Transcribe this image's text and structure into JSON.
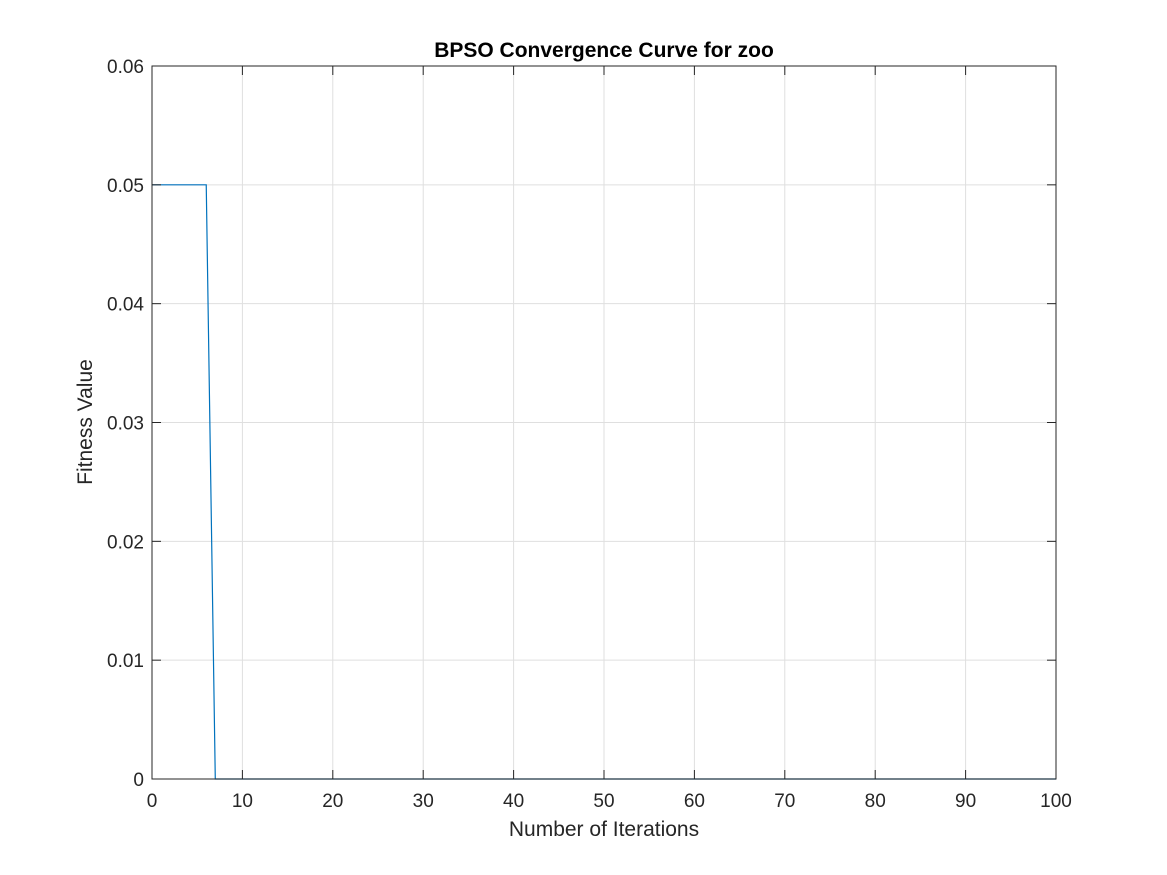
{
  "chart_data": {
    "type": "line",
    "title": "BPSO Convergence Curve for zoo",
    "xlabel": "Number of Iterations",
    "ylabel": "Fitness Value",
    "xlim": [
      0,
      100
    ],
    "ylim": [
      0,
      0.06
    ],
    "xticks": [
      0,
      10,
      20,
      30,
      40,
      50,
      60,
      70,
      80,
      90,
      100
    ],
    "yticks": [
      0,
      0.01,
      0.02,
      0.03,
      0.04,
      0.05,
      0.06
    ],
    "xtick_labels": [
      "0",
      "10",
      "20",
      "30",
      "40",
      "50",
      "60",
      "70",
      "80",
      "90",
      "100"
    ],
    "ytick_labels": [
      "0",
      "0.01",
      "0.02",
      "0.03",
      "0.04",
      "0.05",
      "0.06"
    ],
    "grid": true,
    "series": [
      {
        "color": "#0072BD",
        "x": [
          0,
          1,
          2,
          3,
          4,
          5,
          6,
          7,
          8,
          100
        ],
        "y": [
          0.05,
          0.05,
          0.05,
          0.05,
          0.05,
          0.05,
          0.05,
          0,
          0,
          0
        ]
      }
    ]
  }
}
